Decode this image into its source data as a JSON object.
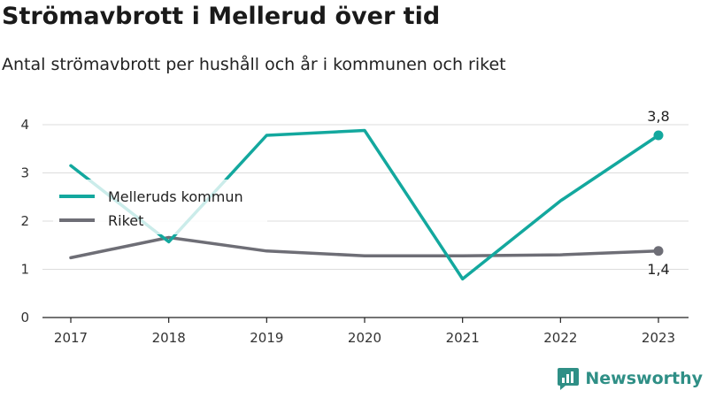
{
  "header": {
    "title": "Strömavbrott i Mellerud över tid",
    "subtitle": "Antal strömavbrott per hushåll och år i kommunen och riket"
  },
  "brand": {
    "name": "Newsworthy",
    "icon": "newsworthy-logo-icon",
    "color": "#2f8f86"
  },
  "chart_data": {
    "type": "line",
    "title": "Strömavbrott i Mellerud över tid",
    "subtitle": "Antal strömavbrott per hushåll och år i kommunen och riket",
    "xlabel": "",
    "ylabel": "",
    "x": [
      "2017",
      "2018",
      "2019",
      "2020",
      "2021",
      "2022",
      "2023"
    ],
    "ylim": [
      0,
      4
    ],
    "yticks": [
      0,
      1,
      2,
      3,
      4
    ],
    "grid": true,
    "legend_placement": "left",
    "series": [
      {
        "name": "Melleruds kommun",
        "color": "#13a89e",
        "values": [
          3.15,
          1.57,
          3.78,
          3.88,
          0.8,
          2.42,
          3.78
        ],
        "end_label": "3,8"
      },
      {
        "name": "Riket",
        "color": "#6e6e76",
        "values": [
          1.24,
          1.66,
          1.38,
          1.28,
          1.28,
          1.3,
          1.38
        ],
        "end_label": "1,4"
      }
    ]
  }
}
